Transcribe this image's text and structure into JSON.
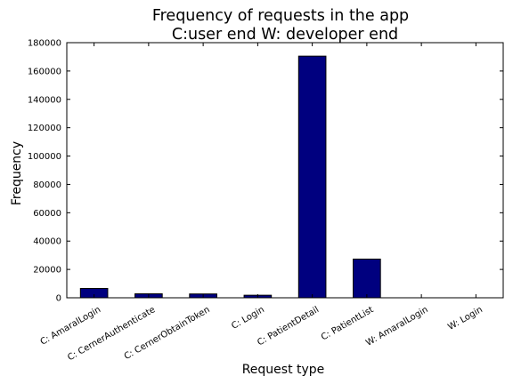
{
  "chart_data": {
    "type": "bar",
    "title_line1": "Frequency of requests in the app",
    "title_line2": "C:user end W: developer end",
    "xlabel": "Request type",
    "ylabel": "Frequency",
    "categories": [
      "C: AmaralLogin",
      "C: CernerAuthenticate",
      "C: CernerObtainToken",
      "C: Login",
      "C: PatientDetail",
      "C: PatientList",
      "W: AmaralLogin",
      "W: Login"
    ],
    "values": [
      6600,
      2800,
      2700,
      1800,
      170500,
      27300,
      0,
      0
    ],
    "ylim": [
      0,
      180000
    ],
    "yticks": [
      0,
      20000,
      40000,
      60000,
      80000,
      100000,
      120000,
      140000,
      160000,
      180000
    ],
    "bar_color": "#00007f",
    "grid": false
  }
}
